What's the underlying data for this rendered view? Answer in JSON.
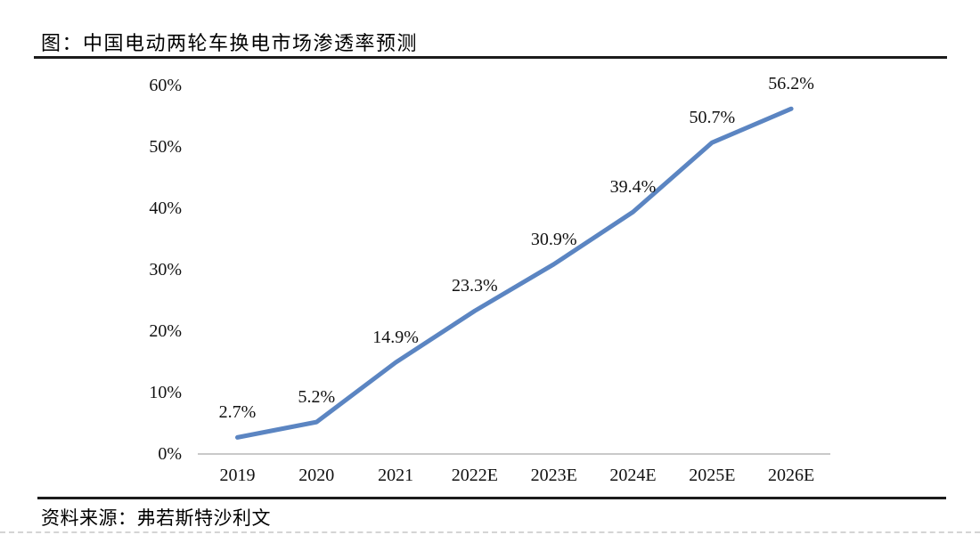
{
  "header": {
    "title": "图：中国电动两轮车换电市场渗透率预测"
  },
  "footer": {
    "source": "资料来源：弗若斯特沙利文"
  },
  "chart_data": {
    "type": "line",
    "title": "中国电动两轮车换电市场渗透率预测",
    "categories": [
      "2019",
      "2020",
      "2021",
      "2022E",
      "2023E",
      "2024E",
      "2025E",
      "2026E"
    ],
    "values": [
      2.7,
      5.2,
      14.9,
      23.3,
      30.9,
      39.4,
      50.7,
      56.2
    ],
    "value_labels": [
      "2.7%",
      "5.2%",
      "14.9%",
      "23.3%",
      "30.9%",
      "39.4%",
      "50.7%",
      "56.2%"
    ],
    "xlabel": "",
    "ylabel": "",
    "ylim": [
      0,
      60
    ],
    "yticks": [
      0,
      10,
      20,
      30,
      40,
      50,
      60
    ],
    "ytick_labels": [
      "0%",
      "10%",
      "20%",
      "30%",
      "40%",
      "50%",
      "60%"
    ],
    "grid": false,
    "legend": "none",
    "line_color": "#5B85C2",
    "axis_line_color": "#c9c9c9"
  }
}
